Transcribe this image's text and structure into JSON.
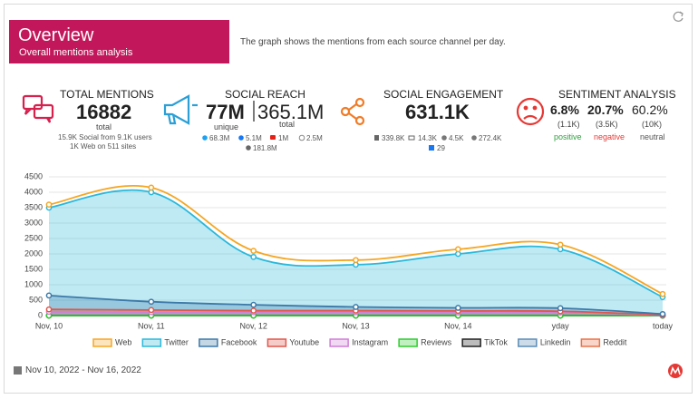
{
  "header": {
    "title": "Overview",
    "subtitle": "Overall mentions analysis",
    "description": "The graph shows the mentions from each source channel per day."
  },
  "total_mentions": {
    "label": "TOTAL MENTIONS",
    "value": "16882",
    "caption": "total",
    "details": [
      "15.9K Social from 9.1K users",
      "1K Web on 511 sites"
    ]
  },
  "social_reach": {
    "label": "SOCIAL REACH",
    "unique": "77M",
    "total": "365.1M",
    "unique_caption": "unique",
    "total_caption": "total",
    "sources": [
      "68.3M",
      "5.1M",
      "1M",
      "2.5M",
      "181.8M"
    ]
  },
  "social_engagement": {
    "label": "SOCIAL ENGAGEMENT",
    "value": "631.1K",
    "sources": [
      "339.8K",
      "14.3K",
      "4.5K",
      "272.4K",
      "29"
    ]
  },
  "sentiment": {
    "label": "SENTIMENT ANALYSIS",
    "items": [
      {
        "percent": "6.8%",
        "count": "(1.1K)",
        "name": "positive"
      },
      {
        "percent": "20.7%",
        "count": "(3.5K)",
        "name": "negative"
      },
      {
        "percent": "60.2%",
        "count": "(10K)",
        "name": "neutral"
      }
    ]
  },
  "date_range": "Nov 10, 2022 - Nov 16, 2022",
  "chart_data": {
    "type": "area",
    "categories": [
      "Nov, 10",
      "Nov, 11",
      "Nov, 12",
      "Nov, 13",
      "Nov, 14",
      "yday",
      "today"
    ],
    "ylim": [
      0,
      4500
    ],
    "yticks": [
      0,
      500,
      1000,
      1500,
      2000,
      2500,
      3000,
      3500,
      4000,
      4500
    ],
    "grid": true,
    "series": [
      {
        "name": "Web",
        "color": "#f5a623",
        "area": false,
        "values": [
          3600,
          4150,
          2100,
          1800,
          2150,
          2300,
          700
        ]
      },
      {
        "name": "Twitter",
        "color": "#2bb8d9",
        "area": true,
        "values": [
          3500,
          4000,
          1900,
          1650,
          2000,
          2150,
          600
        ]
      },
      {
        "name": "Facebook",
        "color": "#3d79a8",
        "area": true,
        "values": [
          650,
          450,
          350,
          280,
          250,
          240,
          50
        ]
      },
      {
        "name": "Youtube",
        "color": "#e0574b",
        "area": true,
        "values": [
          200,
          180,
          160,
          160,
          150,
          140,
          20
        ]
      },
      {
        "name": "Instagram",
        "color": "#cf7fd6",
        "area": false,
        "values": [
          120,
          110,
          110,
          110,
          100,
          100,
          10
        ]
      },
      {
        "name": "Reviews",
        "color": "#2ecc2e",
        "area": false,
        "values": [
          0,
          0,
          0,
          0,
          0,
          0,
          0
        ]
      },
      {
        "name": "TikTok",
        "color": "#222222",
        "area": false,
        "values": [
          0,
          0,
          0,
          0,
          0,
          0,
          0
        ]
      },
      {
        "name": "Linkedin",
        "color": "#5b8cb5",
        "area": false,
        "values": [
          10,
          10,
          10,
          10,
          10,
          10,
          0
        ]
      },
      {
        "name": "Reddit",
        "color": "#e8734a",
        "area": false,
        "values": [
          5,
          5,
          5,
          5,
          5,
          5,
          0
        ]
      }
    ]
  }
}
